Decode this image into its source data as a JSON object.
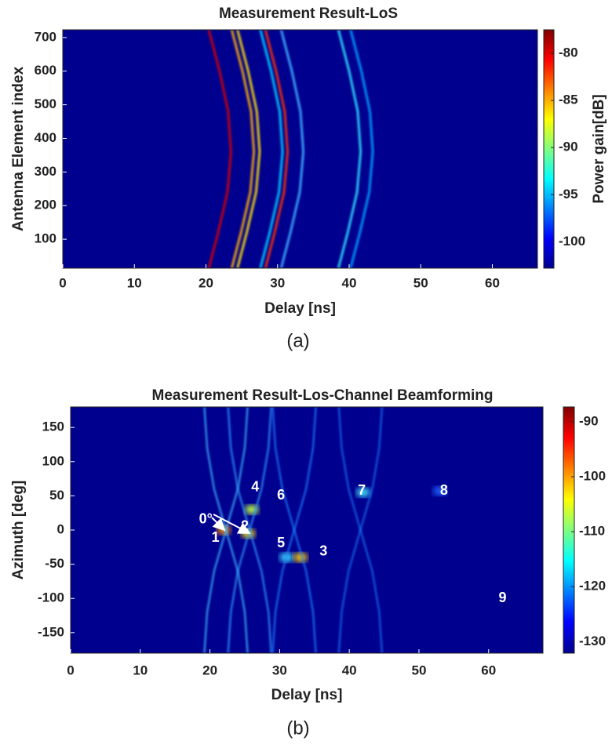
{
  "chart_data": [
    {
      "type": "heatmap",
      "title": "Measurement Result-LoS",
      "x_label": "Delay [ns]",
      "y_label": "Antenna Element index",
      "colorbar_label": "Power gain[dB]",
      "caption": "(a)",
      "background": "#00008f",
      "xlim": [
        0,
        66.3
      ],
      "xticks": [
        0,
        10,
        20,
        30,
        40,
        50,
        60
      ],
      "ylim": [
        14,
        723
      ],
      "yticks": [
        100,
        200,
        300,
        400,
        500,
        600,
        700
      ],
      "clim": [
        -102.8,
        -77.5
      ],
      "cticks": [
        -100,
        -95,
        -90,
        -85,
        -80
      ],
      "traces": [
        {
          "color": "#d40000",
          "x": [
            20.4,
            21.7,
            23.0,
            23.5,
            23.1,
            21.9,
            20.4
          ],
          "values": [
            14,
            120,
            240,
            360,
            480,
            600,
            723
          ]
        },
        {
          "color": "#ffb000",
          "x": [
            23.6,
            24.9,
            26.2,
            26.7,
            26.3,
            25.1,
            23.6
          ],
          "values": [
            14,
            120,
            240,
            360,
            480,
            600,
            723
          ]
        },
        {
          "color": "#ffe000",
          "x": [
            24.4,
            25.7,
            27.0,
            27.5,
            27.1,
            25.9,
            24.4
          ],
          "values": [
            14,
            120,
            240,
            360,
            480,
            600,
            723
          ]
        },
        {
          "color": "#00d0ff",
          "x": [
            27.6,
            28.9,
            30.2,
            30.7,
            30.3,
            29.1,
            27.6
          ],
          "values": [
            14,
            120,
            240,
            360,
            480,
            600,
            723
          ]
        },
        {
          "color": "#ff3000",
          "x": [
            28.3,
            29.6,
            30.9,
            31.4,
            31.0,
            29.8,
            28.3
          ],
          "values": [
            14,
            120,
            240,
            360,
            480,
            600,
            723
          ]
        },
        {
          "color": "#40b0ff",
          "x": [
            30.5,
            31.8,
            33.1,
            33.6,
            33.2,
            32.0,
            30.5
          ],
          "values": [
            14,
            120,
            240,
            360,
            480,
            600,
            723
          ]
        },
        {
          "color": "#30e0ff",
          "x": [
            38.5,
            39.8,
            41.1,
            41.6,
            41.2,
            40.0,
            38.5
          ],
          "values": [
            14,
            120,
            240,
            360,
            480,
            600,
            723
          ]
        },
        {
          "color": "#00a0ff",
          "x": [
            40.2,
            41.5,
            42.8,
            43.3,
            42.9,
            41.7,
            40.2
          ],
          "values": [
            14,
            120,
            240,
            360,
            480,
            600,
            723
          ]
        }
      ]
    },
    {
      "type": "heatmap",
      "title": "Measurement Result-Los-Channel Beamforming",
      "x_label": "Delay [ns]",
      "y_label": "Azimuth [deg]",
      "caption": "(b)",
      "background": "#00008f",
      "xlim": [
        0,
        67.8
      ],
      "xticks": [
        0,
        10,
        20,
        30,
        40,
        50,
        60
      ],
      "ylim": [
        -180,
        180
      ],
      "yticks": [
        -150,
        -100,
        -50,
        0,
        50,
        100,
        150
      ],
      "clim": [
        -132.1,
        -87.3
      ],
      "cticks": [
        -130,
        -120,
        -110,
        -100,
        -90
      ],
      "traces": [
        {
          "color": "#40c0ff",
          "x": [
            19.2,
            19.6,
            20.6,
            22.3,
            24.0,
            25.0,
            25.4
          ],
          "values": [
            -180,
            -120,
            -60,
            0,
            60,
            120,
            180
          ]
        },
        {
          "color": "#40c0ff",
          "x": [
            25.4,
            25.0,
            24.0,
            22.3,
            20.6,
            19.6,
            19.2
          ],
          "values": [
            -180,
            -120,
            -60,
            0,
            60,
            120,
            180
          ]
        },
        {
          "color": "#30a0ff",
          "x": [
            22.6,
            23.0,
            24.0,
            25.7,
            27.4,
            28.4,
            28.8
          ],
          "values": [
            -180,
            -120,
            -60,
            0,
            60,
            120,
            180
          ]
        },
        {
          "color": "#30a0ff",
          "x": [
            28.8,
            28.4,
            27.4,
            25.7,
            24.0,
            23.0,
            22.6
          ],
          "values": [
            -180,
            -120,
            -60,
            0,
            60,
            120,
            180
          ]
        },
        {
          "color": "#2080ff",
          "x": [
            29.0,
            29.4,
            30.4,
            32.1,
            33.8,
            34.8,
            35.2
          ],
          "values": [
            -180,
            -120,
            -60,
            0,
            60,
            120,
            180
          ]
        },
        {
          "color": "#2080ff",
          "x": [
            35.2,
            34.8,
            33.8,
            32.1,
            30.4,
            29.4,
            29.0
          ],
          "values": [
            -180,
            -120,
            -60,
            0,
            60,
            120,
            180
          ]
        },
        {
          "color": "#1870f0",
          "x": [
            38.5,
            38.9,
            39.9,
            41.6,
            43.3,
            44.3,
            44.7
          ],
          "values": [
            -180,
            -120,
            -60,
            0,
            60,
            120,
            180
          ]
        },
        {
          "color": "#1870f0",
          "x": [
            44.7,
            44.3,
            43.3,
            41.6,
            39.9,
            38.9,
            38.5
          ],
          "values": [
            -180,
            -120,
            -60,
            0,
            60,
            120,
            180
          ]
        }
      ],
      "spots": {
        "x": [
          22,
          25.5,
          26,
          31,
          33,
          42,
          53
        ],
        "values": [
          0,
          -5,
          30,
          -40,
          -40,
          55,
          57
        ],
        "colors": [
          "#ff9000",
          "#ffe000",
          "#c0ff40",
          "#40e0ff",
          "#ffd000",
          "#40e0ff",
          "#2060ff"
        ]
      },
      "annotations": [
        {
          "text": "0°",
          "x": 19.4,
          "y": 15
        },
        {
          "text": "2",
          "x": 25.0,
          "y": 5
        },
        {
          "text": "1",
          "x": 20.8,
          "y": -12
        },
        {
          "text": "4",
          "x": 26.5,
          "y": 62
        },
        {
          "text": "6",
          "x": 30.2,
          "y": 50
        },
        {
          "text": "5",
          "x": 30.2,
          "y": -20
        },
        {
          "text": "3",
          "x": 36.3,
          "y": -32
        },
        {
          "text": "7",
          "x": 41.8,
          "y": 57
        },
        {
          "text": "8",
          "x": 53.6,
          "y": 57
        },
        {
          "text": "9",
          "x": 62.0,
          "y": -100
        }
      ]
    }
  ]
}
